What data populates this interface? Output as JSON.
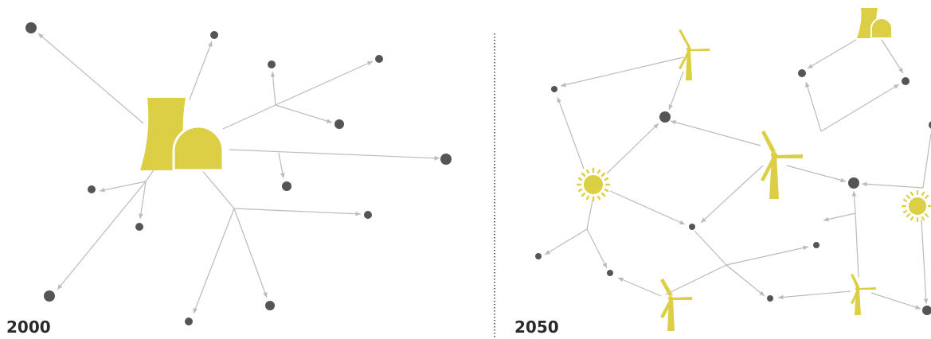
{
  "panels": [
    {
      "id": "centralized",
      "year_label": "2000"
    },
    {
      "id": "decentralized",
      "year_label": "2050"
    }
  ],
  "colors": {
    "generator": "#dccf45",
    "node": "#555555",
    "connection": "#bbbbbb",
    "divider": "#444444",
    "text": "#2b2b2b"
  },
  "icons": {
    "power_plant": "cooling-tower-plant-icon",
    "wind": "wind-turbine-icon",
    "solar": "sun-icon",
    "consumer": "consumer-node-dot"
  }
}
